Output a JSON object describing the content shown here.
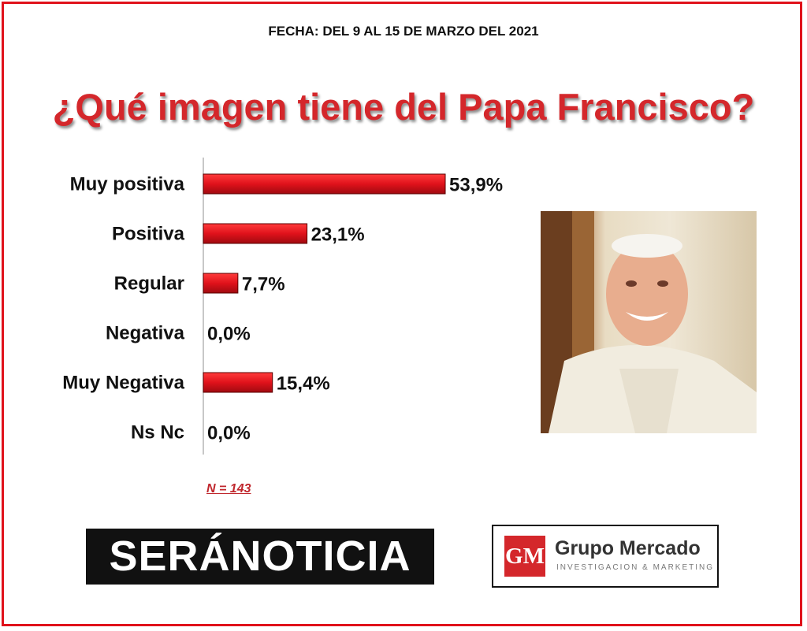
{
  "header": {
    "date_line": "FECHA: DEL 9 AL 15 DE MARZO DEL 2021",
    "title": "¿Qué imagen tiene del Papa Francisco?"
  },
  "chart_data": {
    "type": "bar",
    "orientation": "horizontal",
    "categories": [
      "Muy positiva",
      "Positiva",
      "Regular",
      "Negativa",
      "Muy Negativa",
      "Ns Nc"
    ],
    "values": [
      53.9,
      23.1,
      7.7,
      0.0,
      15.4,
      0.0
    ],
    "value_labels": [
      "53,9%",
      "23,1%",
      "7,7%",
      "0,0%",
      "15,4%",
      "0,0%"
    ],
    "xlim": [
      0,
      60
    ],
    "bar_color": "#e0121b",
    "grid": false,
    "legend": "none"
  },
  "sample_note": "N = 143",
  "photo": {
    "subject": "pope-francis-photo"
  },
  "logos": {
    "seranoticia": "SERÁNOTICIA",
    "grupo_mercado": {
      "badge": "GM",
      "name": "Grupo Mercado",
      "tagline": "INVESTIGACION & MARKETING"
    }
  },
  "colors": {
    "frame": "#e0121b",
    "title": "#d4272b",
    "bar": "#e0121b"
  }
}
